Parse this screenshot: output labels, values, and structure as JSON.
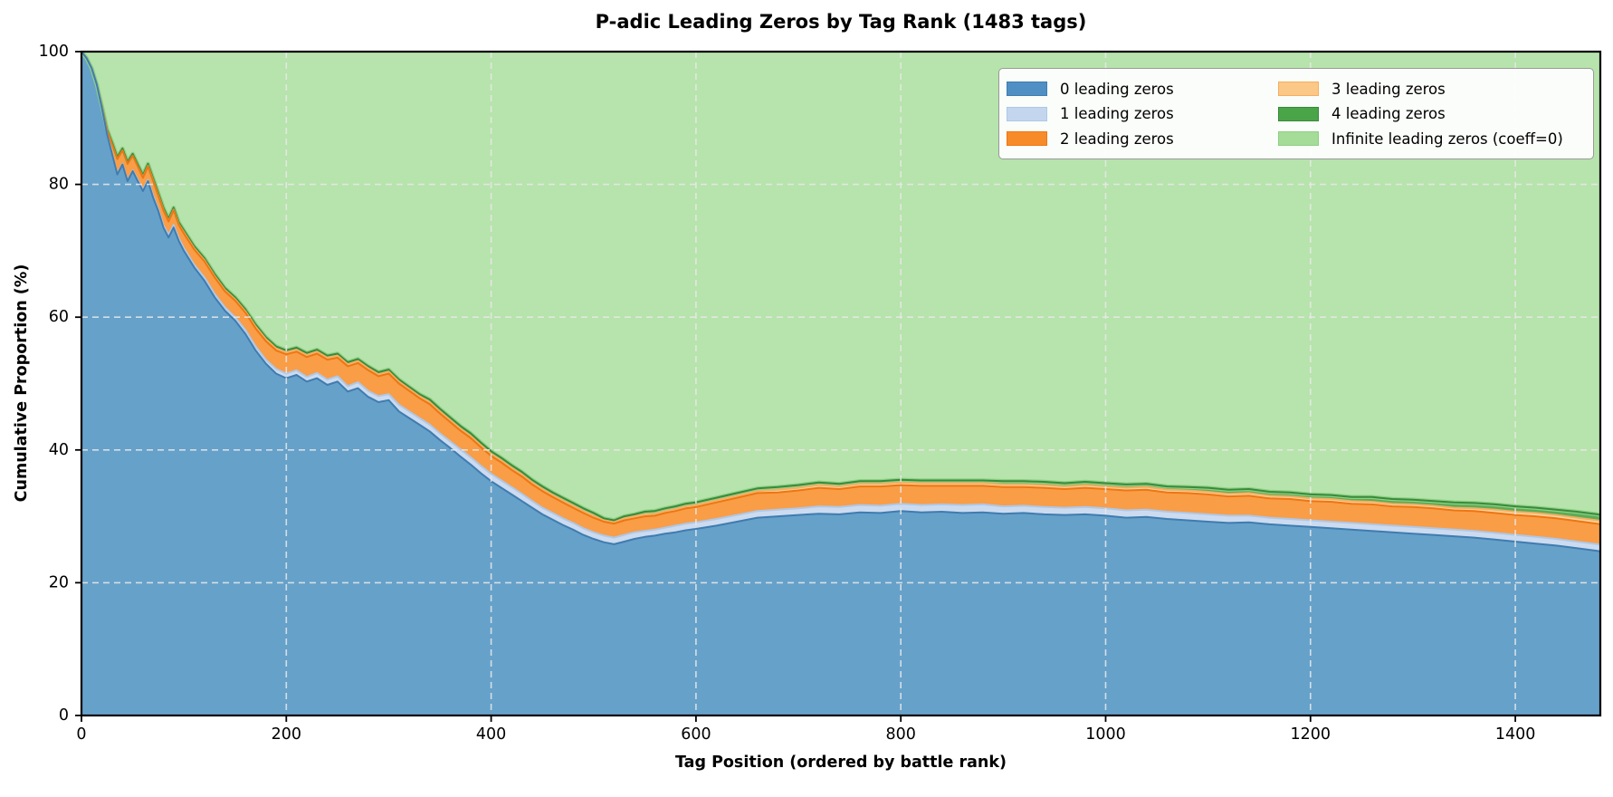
{
  "chart_data": {
    "type": "area",
    "stacked": true,
    "normalized_to_100": true,
    "title": "P-adic Leading Zeros by Tag Rank (1483 tags)",
    "xlabel": "Tag Position (ordered by battle rank)",
    "ylabel": "Cumulative Proportion (%)",
    "xlim": [
      0,
      1483
    ],
    "ylim": [
      0,
      100
    ],
    "x_ticks": [
      0,
      200,
      400,
      600,
      800,
      1000,
      1200,
      1400
    ],
    "y_ticks": [
      0,
      20,
      40,
      60,
      80,
      100
    ],
    "grid": {
      "visible": true,
      "style": "dashed",
      "color": "#e9e9e9"
    },
    "legend": {
      "position": "upper right",
      "columns": 2,
      "border_color": "#9a9a9a",
      "background": "#ffffff"
    },
    "x": [
      0,
      5,
      10,
      15,
      20,
      25,
      30,
      35,
      40,
      45,
      50,
      55,
      60,
      65,
      70,
      75,
      80,
      85,
      90,
      95,
      100,
      110,
      120,
      130,
      140,
      150,
      160,
      170,
      180,
      190,
      200,
      210,
      220,
      230,
      240,
      250,
      260,
      270,
      280,
      290,
      300,
      310,
      320,
      330,
      340,
      350,
      360,
      370,
      380,
      390,
      400,
      410,
      420,
      430,
      440,
      450,
      460,
      470,
      480,
      490,
      500,
      510,
      520,
      530,
      540,
      550,
      560,
      570,
      580,
      590,
      600,
      620,
      640,
      660,
      680,
      700,
      720,
      740,
      760,
      780,
      800,
      820,
      840,
      860,
      880,
      900,
      920,
      940,
      960,
      980,
      1000,
      1020,
      1040,
      1060,
      1080,
      1100,
      1120,
      1140,
      1160,
      1180,
      1200,
      1220,
      1240,
      1260,
      1280,
      1300,
      1320,
      1340,
      1360,
      1380,
      1400,
      1420,
      1440,
      1460,
      1480,
      1483
    ],
    "series": [
      {
        "label": "0 leading zeros",
        "color": "#4f8fc4",
        "area_fill": "#66a1ca",
        "edge": "#3f7cb0",
        "values": [
          100,
          99,
          97.5,
          95,
          91.5,
          87.5,
          84.5,
          81.5,
          83,
          80.5,
          82,
          80.5,
          79,
          80.5,
          78,
          76,
          73.5,
          72,
          73.5,
          71.5,
          70,
          67.5,
          65.5,
          63,
          61,
          59.5,
          57.5,
          55,
          53,
          51.5,
          50.8,
          51.3,
          50.3,
          50.8,
          49.8,
          50.3,
          48.8,
          49.3,
          48,
          47.2,
          47.5,
          45.8,
          44.8,
          43.8,
          42.8,
          41.5,
          40.3,
          39,
          37.8,
          36.5,
          35.3,
          34.3,
          33.3,
          32.3,
          31.3,
          30.3,
          29.5,
          28.7,
          28,
          27.2,
          26.6,
          26.1,
          25.8,
          26.2,
          26.6,
          26.9,
          27.1,
          27.4,
          27.6,
          27.9,
          28.1,
          28.6,
          29.2,
          29.8,
          30,
          30.2,
          30.4,
          30.3,
          30.6,
          30.5,
          30.8,
          30.6,
          30.7,
          30.5,
          30.6,
          30.4,
          30.5,
          30.3,
          30.2,
          30.3,
          30.1,
          29.8,
          29.9,
          29.6,
          29.4,
          29.2,
          29,
          29.1,
          28.8,
          28.6,
          28.4,
          28.2,
          28,
          27.8,
          27.6,
          27.4,
          27.2,
          27,
          26.8,
          26.5,
          26.2,
          25.9,
          25.6,
          25.2,
          24.8,
          24.7
        ]
      },
      {
        "label": "1 leading zeros",
        "color": "#c3d6ee",
        "area_fill": "#ccdbf0",
        "edge": "#aec8e8",
        "values": [
          0,
          0,
          0,
          0,
          0,
          0,
          0,
          0.1,
          0.1,
          0.1,
          0.1,
          0.2,
          0.2,
          0.2,
          0.3,
          0.3,
          0.3,
          0.4,
          0.4,
          0.4,
          0.4,
          0.4,
          0.5,
          0.5,
          0.5,
          0.5,
          0.6,
          0.6,
          0.6,
          0.7,
          0.7,
          0.7,
          0.7,
          0.8,
          0.8,
          0.8,
          0.8,
          0.9,
          0.9,
          0.9,
          0.9,
          1,
          1,
          1,
          1,
          1,
          1,
          1.1,
          1.1,
          1.1,
          1.1,
          1.1,
          1.1,
          1.1,
          1,
          1,
          1,
          1,
          1,
          1,
          1,
          1,
          1,
          1,
          1,
          0.9,
          0.9,
          0.9,
          1,
          1,
          1,
          1,
          1,
          1,
          1,
          1,
          1.1,
          1.1,
          1.1,
          1.1,
          1.1,
          1.1,
          1.1,
          1.2,
          1.2,
          1.1,
          1.1,
          1.1,
          1.1,
          1.1,
          1.1,
          1.1,
          1.1,
          1.1,
          1.1,
          1.1,
          1.1,
          1,
          1,
          1,
          1,
          1,
          1,
          1,
          1,
          1,
          1,
          1,
          1,
          1,
          1,
          1,
          1,
          1,
          1,
          1
        ]
      },
      {
        "label": "2 leading zeros",
        "color": "#f78b29",
        "area_fill": "#f99d47",
        "edge": "#ee7611",
        "values": [
          0,
          0,
          0,
          0,
          0.2,
          0.6,
          1.5,
          2.2,
          2,
          2.5,
          2.2,
          2,
          1.8,
          2,
          2.2,
          2,
          2.3,
          2,
          2.2,
          2,
          2.2,
          2.3,
          2.4,
          2.5,
          2.4,
          2.5,
          2.6,
          2.7,
          2.8,
          2.8,
          2.9,
          2.8,
          3,
          2.9,
          3,
          2.8,
          3,
          2.9,
          3.1,
          3,
          3.1,
          3.2,
          3.1,
          3,
          3.1,
          3,
          2.9,
          2.8,
          2.9,
          2.8,
          2.7,
          2.7,
          2.6,
          2.6,
          2.5,
          2.5,
          2.4,
          2.4,
          2.3,
          2.3,
          2.2,
          2.1,
          2.1,
          2.2,
          2.1,
          2.2,
          2.1,
          2.2,
          2.2,
          2.3,
          2.3,
          2.5,
          2.6,
          2.7,
          2.6,
          2.7,
          2.8,
          2.7,
          2.8,
          2.9,
          2.8,
          2.9,
          2.8,
          2.9,
          2.8,
          2.9,
          2.8,
          2.9,
          2.8,
          2.9,
          2.9,
          3,
          3,
          2.9,
          3,
          3,
          2.9,
          3,
          2.9,
          3,
          2.9,
          3,
          2.9,
          3,
          2.9,
          3,
          3,
          2.9,
          3,
          3,
          3,
          3.1,
          3.1,
          3.1,
          3.1,
          3.1
        ]
      },
      {
        "label": "3 leading zeros",
        "color": "#fbc888",
        "area_fill": "#fcd4a0",
        "edge": "#f5ae62",
        "values": [
          0,
          0,
          0,
          0,
          0,
          0,
          0,
          0,
          0,
          0,
          0,
          0,
          0.1,
          0.1,
          0.1,
          0.1,
          0.1,
          0.1,
          0.1,
          0.1,
          0.2,
          0.2,
          0.2,
          0.2,
          0.2,
          0.2,
          0.2,
          0.3,
          0.3,
          0.3,
          0.3,
          0.3,
          0.3,
          0.3,
          0.3,
          0.3,
          0.3,
          0.3,
          0.3,
          0.3,
          0.3,
          0.3,
          0.3,
          0.3,
          0.3,
          0.3,
          0.3,
          0.3,
          0.3,
          0.3,
          0.3,
          0.3,
          0.3,
          0.3,
          0.3,
          0.3,
          0.3,
          0.3,
          0.3,
          0.3,
          0.3,
          0.2,
          0.2,
          0.3,
          0.3,
          0.3,
          0.3,
          0.3,
          0.3,
          0.3,
          0.3,
          0.3,
          0.3,
          0.3,
          0.4,
          0.4,
          0.4,
          0.4,
          0.4,
          0.4,
          0.4,
          0.4,
          0.4,
          0.4,
          0.4,
          0.4,
          0.4,
          0.4,
          0.4,
          0.4,
          0.4,
          0.4,
          0.4,
          0.4,
          0.4,
          0.4,
          0.4,
          0.4,
          0.4,
          0.4,
          0.4,
          0.4,
          0.4,
          0.4,
          0.4,
          0.4,
          0.4,
          0.4,
          0.4,
          0.5,
          0.5,
          0.5,
          0.5,
          0.5,
          0.5,
          0.5
        ]
      },
      {
        "label": "4 leading zeros",
        "color": "#4aa448",
        "area_fill": "#5cac57",
        "edge": "#398a3c",
        "values": [
          0,
          0,
          0,
          0,
          0.1,
          0.2,
          0.3,
          0.3,
          0.3,
          0.3,
          0.3,
          0.3,
          0.3,
          0.3,
          0.3,
          0.3,
          0.3,
          0.3,
          0.3,
          0.3,
          0.3,
          0.3,
          0.3,
          0.3,
          0.3,
          0.3,
          0.3,
          0.3,
          0.3,
          0.3,
          0.3,
          0.3,
          0.3,
          0.3,
          0.3,
          0.3,
          0.3,
          0.3,
          0.3,
          0.3,
          0.3,
          0.3,
          0.3,
          0.3,
          0.4,
          0.4,
          0.4,
          0.4,
          0.4,
          0.4,
          0.4,
          0.4,
          0.4,
          0.4,
          0.4,
          0.4,
          0.4,
          0.4,
          0.4,
          0.4,
          0.4,
          0.3,
          0.3,
          0.3,
          0.3,
          0.4,
          0.4,
          0.4,
          0.4,
          0.4,
          0.4,
          0.4,
          0.4,
          0.4,
          0.4,
          0.4,
          0.4,
          0.4,
          0.4,
          0.4,
          0.4,
          0.4,
          0.4,
          0.4,
          0.4,
          0.5,
          0.5,
          0.5,
          0.5,
          0.5,
          0.5,
          0.5,
          0.5,
          0.5,
          0.5,
          0.6,
          0.6,
          0.6,
          0.6,
          0.6,
          0.6,
          0.6,
          0.6,
          0.7,
          0.7,
          0.7,
          0.7,
          0.8,
          0.8,
          0.8,
          0.8,
          0.8,
          0.8,
          0.9,
          0.9,
          0.9
        ]
      },
      {
        "label": "Infinite leading zeros (coeff=0)",
        "color": "#a5dc98",
        "area_fill": "#b7e3ac",
        "edge": "#8ed084",
        "values_rule": "remainder_to_100"
      }
    ]
  }
}
